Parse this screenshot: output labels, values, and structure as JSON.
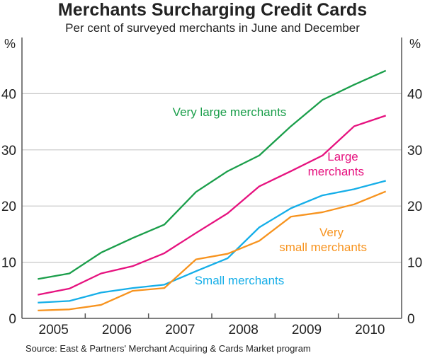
{
  "chart_data": {
    "type": "line",
    "title": "Merchants Surcharging Credit Cards",
    "subtitle": "Per cent of surveyed merchants in June and December",
    "ylabel_left": "%",
    "ylabel_right": "%",
    "ylim": [
      0,
      50
    ],
    "yticks": [
      0,
      10,
      20,
      30,
      40
    ],
    "xlim": [
      2005,
      2011
    ],
    "xtick_labels": [
      "2005",
      "2006",
      "2007",
      "2008",
      "2009",
      "2010"
    ],
    "x": [
      2005.25,
      2005.75,
      2006.25,
      2006.75,
      2007.25,
      2007.75,
      2008.25,
      2008.75,
      2009.25,
      2009.75,
      2010.25,
      2010.75
    ],
    "grid": true,
    "series": [
      {
        "name": "Very large merchants",
        "label_lines": [
          "Very large merchants"
        ],
        "color": "#1a9e4a",
        "values": [
          7.0,
          8.0,
          11.7,
          14.3,
          16.7,
          22.5,
          26.2,
          29.0,
          34.2,
          38.9,
          41.6,
          44.1
        ]
      },
      {
        "name": "Large merchants",
        "label_lines": [
          "Large",
          "merchants"
        ],
        "color": "#e6127f",
        "values": [
          4.2,
          5.3,
          8.0,
          9.3,
          11.6,
          15.2,
          18.7,
          23.5,
          26.2,
          29.0,
          34.2,
          36.1
        ]
      },
      {
        "name": "Small merchants",
        "label_lines": [
          "Small merchants"
        ],
        "color": "#15aee8",
        "values": [
          2.8,
          3.1,
          4.6,
          5.4,
          6.0,
          8.4,
          10.7,
          16.2,
          19.6,
          21.9,
          23.0,
          24.5
        ]
      },
      {
        "name": "Very small merchants",
        "label_lines": [
          "Very",
          "small merchants"
        ],
        "color": "#f7931e",
        "values": [
          1.4,
          1.6,
          2.4,
          4.9,
          5.4,
          10.5,
          11.5,
          13.8,
          18.1,
          18.9,
          20.3,
          22.6
        ]
      }
    ],
    "source": "Source: East & Partners' Merchant Acquiring & Cards Market program"
  }
}
